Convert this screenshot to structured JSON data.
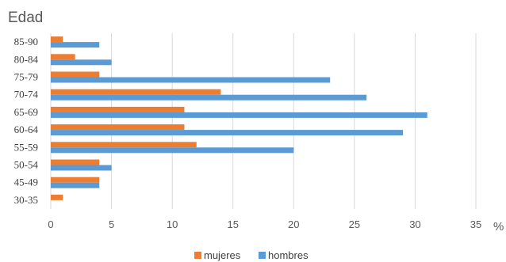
{
  "chart_data": {
    "type": "bar",
    "orientation": "horizontal",
    "title": "Edad",
    "xlabel": "%",
    "ylabel": "",
    "xlim": [
      0,
      35
    ],
    "xticks": [
      "0",
      "5",
      "10",
      "15",
      "20",
      "25",
      "30",
      "35"
    ],
    "categories": [
      "85-90",
      "80-84",
      "75-79",
      "70-74",
      "65-69",
      "60-64",
      "55-59",
      "50-54",
      "45-49",
      "30-35"
    ],
    "series": [
      {
        "name": "mujeres",
        "color": "#ed7d31",
        "values": [
          1,
          2,
          4,
          14,
          11,
          11,
          12,
          4,
          4,
          1
        ]
      },
      {
        "name": "hombres",
        "color": "#5b9bd5",
        "values": [
          4,
          5,
          23,
          26,
          31,
          29,
          20,
          5,
          4,
          0
        ]
      }
    ],
    "grid": true,
    "legend": "bottom"
  }
}
